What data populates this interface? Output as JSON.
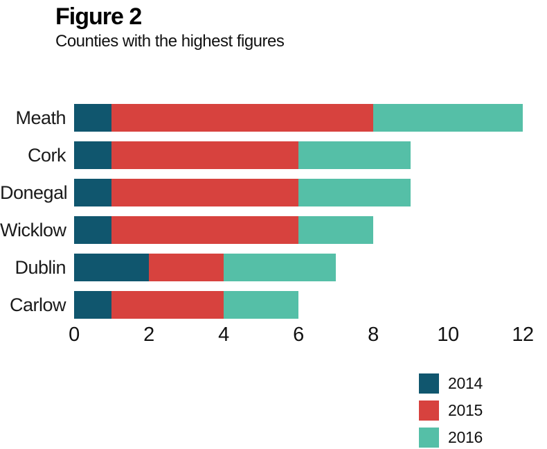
{
  "header": {
    "title": "Figure 2",
    "subtitle": "Counties with the highest figures"
  },
  "chart_data": {
    "type": "bar",
    "orientation": "horizontal",
    "stacked": true,
    "title": "Figure 2",
    "subtitle": "Counties with the highest figures",
    "categories": [
      "Meath",
      "Cork",
      "Donegal",
      "Wicklow",
      "Dublin",
      "Carlow"
    ],
    "series": [
      {
        "name": "2014",
        "color": "#10566E",
        "values": [
          1,
          1,
          1,
          1,
          2,
          1
        ]
      },
      {
        "name": "2015",
        "color": "#D7423E",
        "values": [
          7,
          5,
          5,
          5,
          2,
          3
        ]
      },
      {
        "name": "2016",
        "color": "#55BFA7",
        "values": [
          4,
          3,
          3,
          2,
          3,
          2
        ]
      }
    ],
    "totals": [
      12,
      9,
      9,
      8,
      7,
      6
    ],
    "xlabel": "",
    "ylabel": "",
    "xlim": [
      0,
      12
    ],
    "x_ticks": [
      0,
      2,
      4,
      6,
      8,
      10,
      12
    ],
    "grid": false,
    "legend_position": "bottom-right"
  }
}
